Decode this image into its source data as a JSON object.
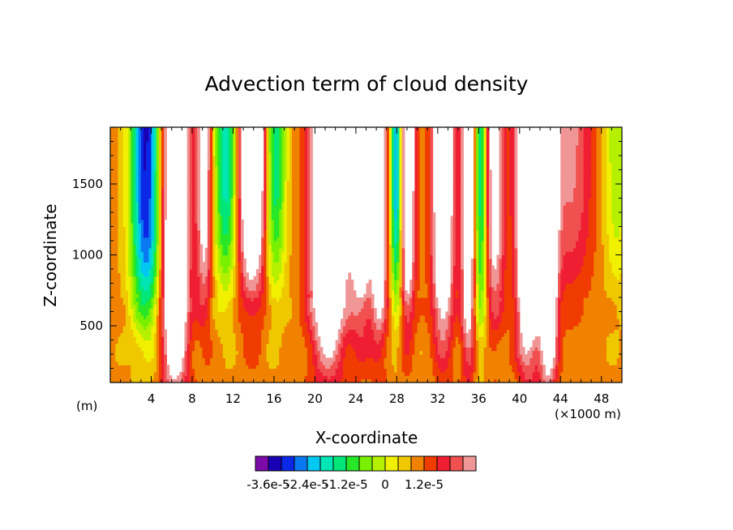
{
  "chart_data": {
    "type": "heatmap",
    "title": "Advection term of cloud density",
    "xlabel": "X-coordinate",
    "ylabel": "Z-coordinate",
    "x_unit_left": "(m)",
    "x_unit_right": "(×1000 m)",
    "xlim": [
      0,
      50
    ],
    "ylim": [
      100,
      1900
    ],
    "x_ticks": [
      4,
      8,
      12,
      16,
      20,
      24,
      28,
      32,
      36,
      40,
      44,
      48
    ],
    "x_tick_labels": [
      "4",
      "8",
      "12",
      "16",
      "20",
      "24",
      "28",
      "32",
      "36",
      "40",
      "44",
      "48"
    ],
    "y_ticks": [
      500,
      1000,
      1500
    ],
    "y_tick_labels": [
      "500",
      "1000",
      "1500"
    ],
    "background_value": "above 1.5e-5 (white)",
    "colorbar": {
      "colors": [
        "#7b0aa8",
        "#1a00b4",
        "#0a28e6",
        "#0a78f0",
        "#00c8f0",
        "#00e6b4",
        "#00e678",
        "#28e628",
        "#78f000",
        "#b4f000",
        "#f0f000",
        "#f0c800",
        "#f08200",
        "#f03c00",
        "#f01e32",
        "#f05050",
        "#f09696"
      ],
      "labels": [
        "-3.6e-5",
        "-2.4e-5",
        "-1.2e-5",
        "0",
        "1.2e-5"
      ],
      "label_positions": [
        0,
        3,
        6,
        9,
        12
      ]
    },
    "features": [
      {
        "x": 3.5,
        "base": 650,
        "w": 1.8,
        "level": -3.2
      },
      {
        "x": 6.3,
        "base": 200,
        "w": 1.5,
        "level": 3.5
      },
      {
        "x": 9.2,
        "base": 750,
        "w": 0.9,
        "level": 2.0
      },
      {
        "x": 11.5,
        "base": 900,
        "w": 1.6,
        "level": -2.6
      },
      {
        "x": 13.8,
        "base": 900,
        "w": 2.0,
        "level": 3.5
      },
      {
        "x": 16.0,
        "base": 900,
        "w": 1.3,
        "level": -2.4
      },
      {
        "x": 21.3,
        "base": 400,
        "w": 2.0,
        "level": 3.5
      },
      {
        "x": 24.5,
        "base": 600,
        "w": 1.4,
        "level": 2.2
      },
      {
        "x": 26.3,
        "base": 550,
        "w": 0.9,
        "level": 2.5
      },
      {
        "x": 28.0,
        "base": 800,
        "w": 0.7,
        "level": -3.0
      },
      {
        "x": 29.0,
        "base": 700,
        "w": 0.9,
        "level": 2.8
      },
      {
        "x": 32.5,
        "base": 550,
        "w": 1.2,
        "level": 3.0
      },
      {
        "x": 35.0,
        "base": 400,
        "w": 0.8,
        "level": 2.6
      },
      {
        "x": 36.2,
        "base": 600,
        "w": 0.8,
        "level": -2.2
      },
      {
        "x": 37.5,
        "base": 700,
        "w": 1.2,
        "level": 2.0
      },
      {
        "x": 40.8,
        "base": 400,
        "w": 1.3,
        "level": 3.5
      },
      {
        "x": 42.8,
        "base": 250,
        "w": 1.0,
        "level": 3.5
      },
      {
        "x": 45.0,
        "base": 900,
        "w": 2.5,
        "level": 1.2
      },
      {
        "x": 49.5,
        "base": 900,
        "w": 1.5,
        "level": -1.0
      }
    ]
  }
}
